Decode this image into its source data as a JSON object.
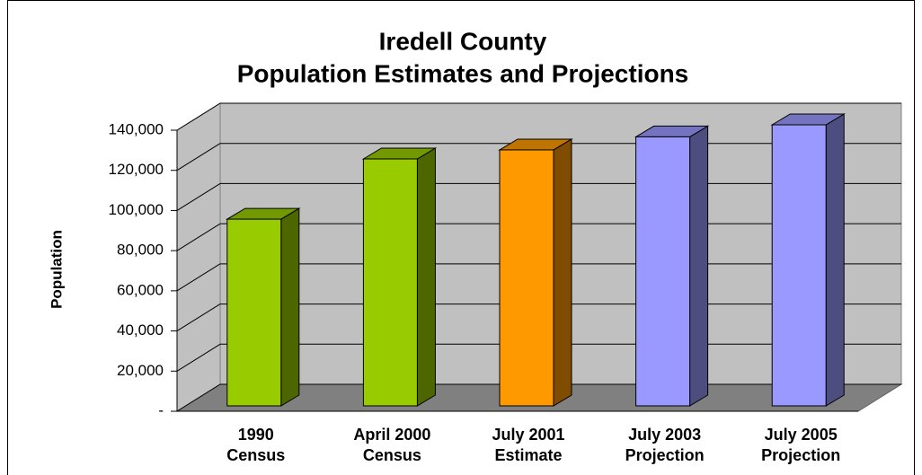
{
  "chart_data": {
    "type": "bar3d",
    "title": [
      "Iredell County",
      "Population Estimates and Projections"
    ],
    "y_label": "Population",
    "categories": [
      "1990 Census",
      "April 2000 Census",
      "July 2001 Estimate",
      "July 2003 Projection",
      "July 2005 Projection"
    ],
    "values": [
      93000,
      123000,
      127500,
      134000,
      140000
    ],
    "colors": [
      "#99cc00",
      "#99cc00",
      "#ff9900",
      "#9999ff",
      "#9999ff"
    ],
    "ylim": [
      0,
      140000
    ],
    "yticks": [
      {
        "value": 0,
        "label": "-"
      },
      {
        "value": 20000,
        "label": "20,000"
      },
      {
        "value": 40000,
        "label": "40,000"
      },
      {
        "value": 60000,
        "label": "60,000"
      },
      {
        "value": 80000,
        "label": "80,000"
      },
      {
        "value": 100000,
        "label": "100,000"
      },
      {
        "value": 120000,
        "label": "120,000"
      },
      {
        "value": 140000,
        "label": "140,000"
      }
    ],
    "grid": true
  }
}
